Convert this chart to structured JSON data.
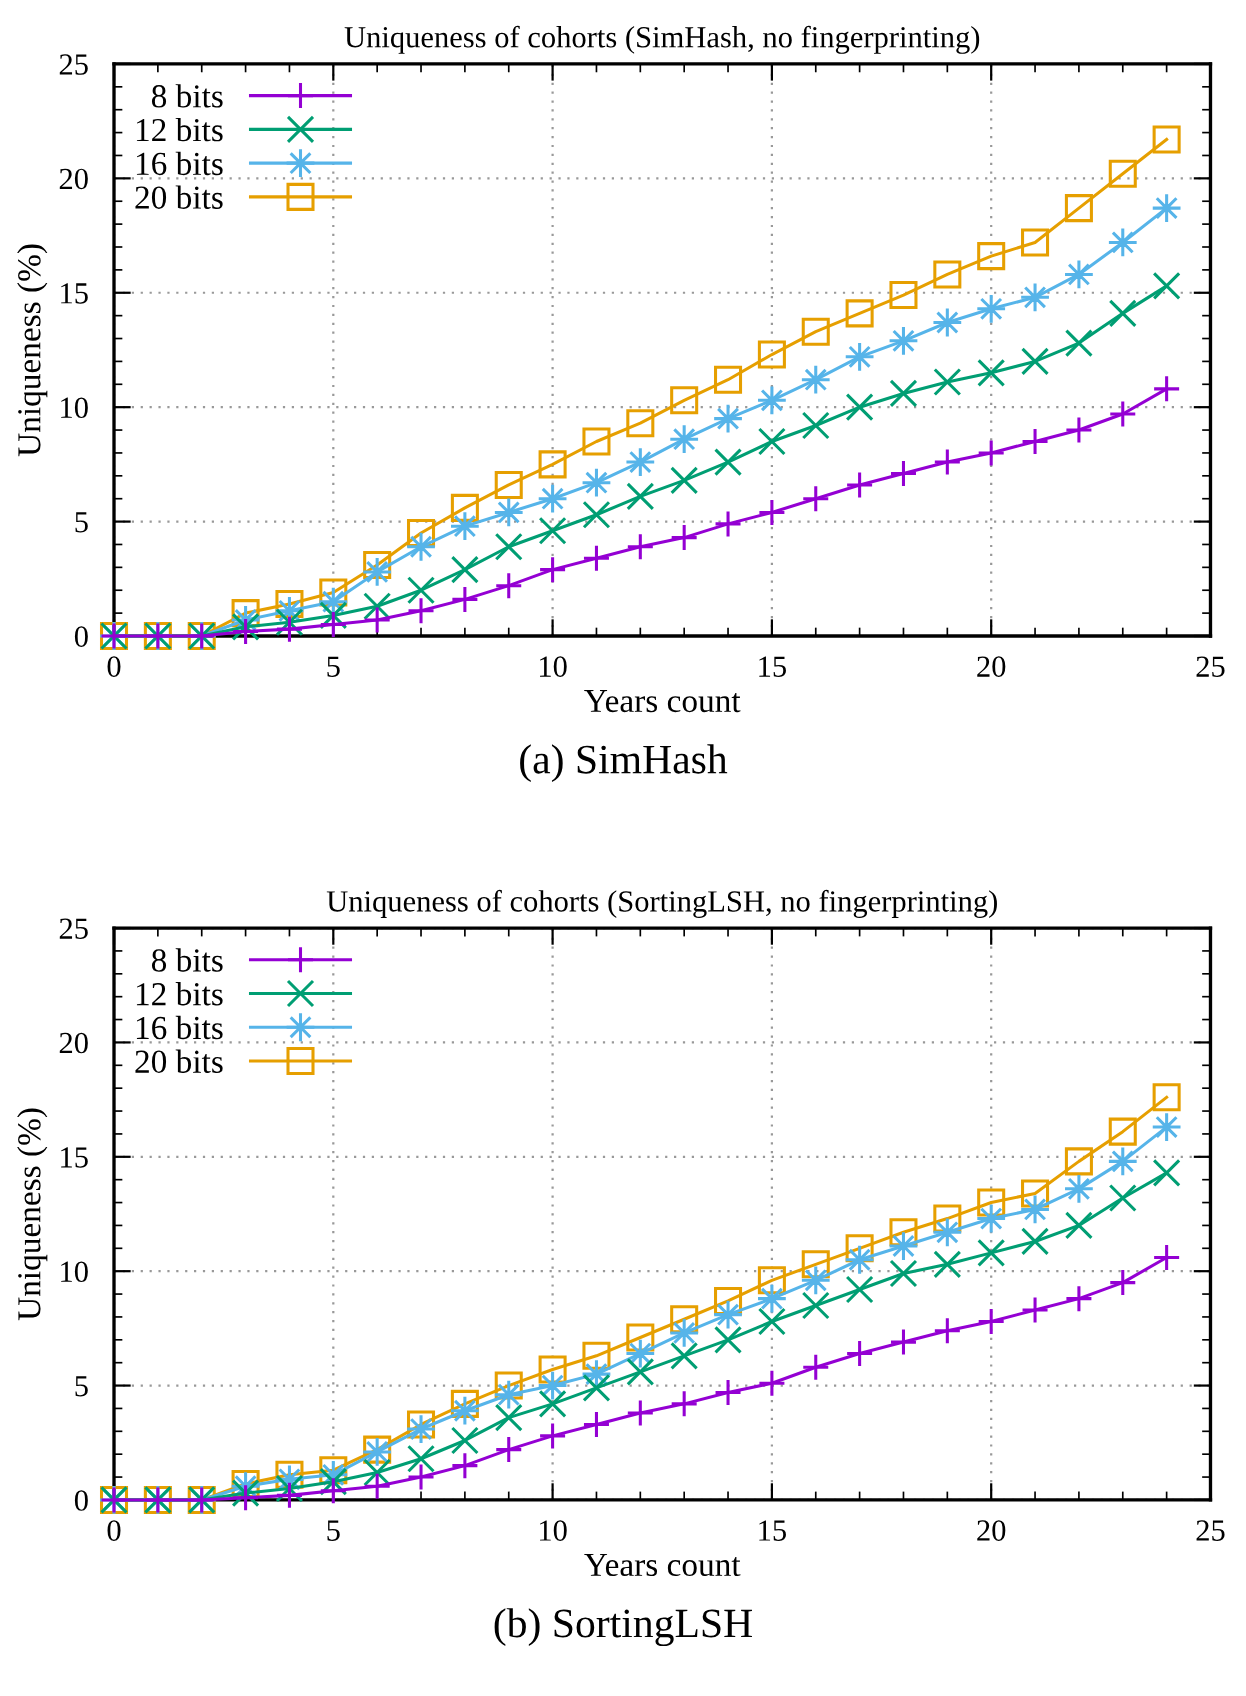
{
  "chart_data": [
    {
      "type": "line",
      "title": "Uniqueness of cohorts (SimHash, no fingerprinting)",
      "xlabel": "Years count",
      "ylabel": "Uniqueness (%)",
      "annotations": [
        "(a) SimHash"
      ],
      "x": [
        0,
        1,
        2,
        3,
        4,
        5,
        6,
        7,
        8,
        9,
        10,
        11,
        12,
        13,
        14,
        15,
        16,
        17,
        18,
        19,
        20,
        21,
        22,
        23,
        24
      ],
      "xlim": [
        0,
        25
      ],
      "xticks": [
        0,
        5,
        10,
        15,
        20,
        25
      ],
      "ylim": [
        0,
        25
      ],
      "yticks": [
        0,
        5,
        10,
        15,
        20,
        25
      ],
      "grid": true,
      "legend": "top left",
      "line_style": "solid",
      "series": [
        {
          "name": "8 bits",
          "color": "#9400d3",
          "marker": "plus",
          "values": [
            0,
            0,
            0,
            0.2,
            0.3,
            0.5,
            0.7,
            1.1,
            1.6,
            2.2,
            2.9,
            3.4,
            3.9,
            4.3,
            4.9,
            5.4,
            6.0,
            6.6,
            7.1,
            7.6,
            8.0,
            8.5,
            9.0,
            9.7,
            10.8
          ]
        },
        {
          "name": "12 bits",
          "color": "#009e73",
          "marker": "x",
          "values": [
            0,
            0,
            0,
            0.4,
            0.6,
            0.9,
            1.3,
            2.0,
            2.9,
            3.9,
            4.6,
            5.3,
            6.1,
            6.8,
            7.6,
            8.5,
            9.2,
            10.0,
            10.6,
            11.1,
            11.5,
            12.0,
            12.8,
            14.1,
            15.3
          ]
        },
        {
          "name": "16 bits",
          "color": "#56b4e9",
          "marker": "star",
          "values": [
            0,
            0,
            0,
            0.7,
            1.1,
            1.5,
            2.8,
            3.9,
            4.8,
            5.4,
            6.0,
            6.7,
            7.6,
            8.6,
            9.5,
            10.3,
            11.2,
            12.2,
            12.9,
            13.7,
            14.3,
            14.8,
            15.8,
            17.2,
            18.7
          ]
        },
        {
          "name": "20 bits",
          "color": "#e69f00",
          "marker": "square",
          "values": [
            0,
            0,
            0,
            1.0,
            1.4,
            1.9,
            3.1,
            4.5,
            5.6,
            6.6,
            7.5,
            8.5,
            9.3,
            10.3,
            11.2,
            12.3,
            13.3,
            14.1,
            14.9,
            15.8,
            16.6,
            17.2,
            18.7,
            20.2,
            21.7
          ]
        }
      ]
    },
    {
      "type": "line",
      "title": "Uniqueness of cohorts (SortingLSH, no fingerprinting)",
      "xlabel": "Years count",
      "ylabel": "Uniqueness (%)",
      "annotations": [
        "(b) SortingLSH"
      ],
      "x": [
        0,
        1,
        2,
        3,
        4,
        5,
        6,
        7,
        8,
        9,
        10,
        11,
        12,
        13,
        14,
        15,
        16,
        17,
        18,
        19,
        20,
        21,
        22,
        23,
        24
      ],
      "xlim": [
        0,
        25
      ],
      "xticks": [
        0,
        5,
        10,
        15,
        20,
        25
      ],
      "ylim": [
        0,
        25
      ],
      "yticks": [
        0,
        5,
        10,
        15,
        20,
        25
      ],
      "grid": true,
      "legend": "top left",
      "line_style": "solid",
      "series": [
        {
          "name": "8 bits",
          "color": "#9400d3",
          "marker": "plus",
          "values": [
            0,
            0,
            0,
            0.1,
            0.2,
            0.4,
            0.6,
            1.0,
            1.5,
            2.2,
            2.8,
            3.3,
            3.8,
            4.2,
            4.7,
            5.1,
            5.8,
            6.4,
            6.9,
            7.4,
            7.8,
            8.3,
            8.8,
            9.5,
            10.6
          ]
        },
        {
          "name": "12 bits",
          "color": "#009e73",
          "marker": "x",
          "values": [
            0,
            0,
            0,
            0.3,
            0.5,
            0.8,
            1.2,
            1.8,
            2.6,
            3.6,
            4.2,
            4.9,
            5.6,
            6.3,
            7.0,
            7.8,
            8.5,
            9.2,
            9.9,
            10.3,
            10.8,
            11.3,
            12.0,
            13.2,
            14.3
          ]
        },
        {
          "name": "16 bits",
          "color": "#56b4e9",
          "marker": "star",
          "values": [
            0,
            0,
            0,
            0.6,
            0.9,
            1.1,
            2.1,
            3.1,
            3.9,
            4.6,
            5.0,
            5.5,
            6.4,
            7.3,
            8.1,
            8.8,
            9.6,
            10.5,
            11.1,
            11.7,
            12.3,
            12.7,
            13.6,
            14.8,
            16.3
          ]
        },
        {
          "name": "20 bits",
          "color": "#e69f00",
          "marker": "square",
          "values": [
            0,
            0,
            0,
            0.7,
            1.1,
            1.3,
            2.2,
            3.3,
            4.2,
            5.0,
            5.7,
            6.3,
            7.1,
            7.9,
            8.7,
            9.6,
            10.3,
            11.0,
            11.7,
            12.3,
            13.0,
            13.4,
            14.8,
            16.1,
            17.6
          ]
        }
      ]
    }
  ]
}
